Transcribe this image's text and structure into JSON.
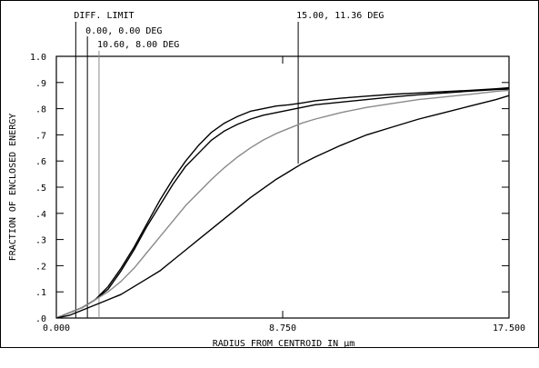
{
  "chart_data": {
    "type": "line",
    "title": "",
    "xlabel": "RADIUS FROM CENTROID IN µm",
    "ylabel": "FRACTION OF ENCLOSED ENERGY",
    "xlim": [
      0,
      17.5
    ],
    "ylim": [
      0,
      1.0
    ],
    "x_ticks": [
      0,
      8.75,
      17.5
    ],
    "x_tick_labels": [
      "0.000",
      "8.750",
      "17.500"
    ],
    "y_ticks": [
      0,
      0.1,
      0.2,
      0.3,
      0.4,
      0.5,
      0.6,
      0.7,
      0.8,
      0.9,
      1.0
    ],
    "y_tick_labels": [
      ".0",
      ".1",
      ".2",
      ".3",
      ".4",
      ".5",
      ".6",
      ".7",
      ".8",
      ".9",
      "1.0"
    ],
    "grid": false,
    "annotations": [
      {
        "text": "DIFF. LIMIT",
        "x": 0.75
      },
      {
        "text": "0.00, 0.00 DEG",
        "x": 1.2
      },
      {
        "text": "10.60, 8.00 DEG",
        "x": 1.65
      },
      {
        "text": "15.00, 11.36 DEG",
        "x": 9.35
      }
    ],
    "series": [
      {
        "color": "#000000",
        "x": [
          0,
          0.5,
          1,
          1.5,
          2,
          2.5,
          3,
          3.5,
          4,
          4.5,
          5,
          5.5,
          6,
          6.5,
          7,
          7.5,
          8,
          8.5,
          9,
          9.5,
          10,
          11,
          12,
          13,
          14,
          15,
          16,
          17,
          17.5
        ],
        "y": [
          0,
          0.02,
          0.04,
          0.07,
          0.12,
          0.19,
          0.27,
          0.36,
          0.45,
          0.53,
          0.6,
          0.66,
          0.71,
          0.745,
          0.77,
          0.79,
          0.8,
          0.81,
          0.815,
          0.822,
          0.83,
          0.84,
          0.848,
          0.855,
          0.86,
          0.865,
          0.87,
          0.876,
          0.88
        ]
      },
      {
        "color": "#000000",
        "x": [
          0,
          0.5,
          1,
          1.5,
          2,
          2.5,
          3,
          3.5,
          4,
          4.5,
          5,
          5.5,
          6,
          6.5,
          7,
          7.5,
          8,
          8.5,
          9,
          9.5,
          10,
          11,
          12,
          13,
          14,
          15,
          16,
          17,
          17.5
        ],
        "y": [
          0,
          0.02,
          0.04,
          0.07,
          0.11,
          0.18,
          0.26,
          0.35,
          0.43,
          0.51,
          0.58,
          0.63,
          0.68,
          0.715,
          0.74,
          0.76,
          0.775,
          0.785,
          0.795,
          0.805,
          0.815,
          0.825,
          0.835,
          0.845,
          0.853,
          0.86,
          0.867,
          0.873,
          0.875
        ]
      },
      {
        "color": "#8a8a8a",
        "x": [
          0,
          0.5,
          1,
          1.5,
          2,
          2.5,
          3,
          3.5,
          4,
          4.5,
          5,
          5.5,
          6,
          6.5,
          7,
          7.5,
          8,
          8.5,
          9,
          9.5,
          10,
          11,
          12,
          13,
          14,
          15,
          16,
          17,
          17.5
        ],
        "y": [
          0,
          0.02,
          0.04,
          0.07,
          0.1,
          0.14,
          0.19,
          0.25,
          0.31,
          0.37,
          0.43,
          0.48,
          0.53,
          0.575,
          0.615,
          0.65,
          0.68,
          0.705,
          0.725,
          0.745,
          0.76,
          0.785,
          0.805,
          0.82,
          0.835,
          0.845,
          0.855,
          0.866,
          0.87
        ]
      },
      {
        "color": "#000000",
        "x": [
          0,
          0.5,
          1,
          1.5,
          2,
          2.5,
          3,
          3.5,
          4,
          4.5,
          5,
          5.5,
          6,
          6.5,
          7,
          7.5,
          8,
          8.5,
          9,
          9.5,
          10,
          11,
          12,
          13,
          14,
          15,
          16,
          17,
          17.5
        ],
        "y": [
          0,
          0.01,
          0.03,
          0.05,
          0.07,
          0.09,
          0.12,
          0.15,
          0.18,
          0.22,
          0.26,
          0.3,
          0.34,
          0.38,
          0.42,
          0.46,
          0.495,
          0.53,
          0.56,
          0.59,
          0.615,
          0.66,
          0.7,
          0.73,
          0.76,
          0.785,
          0.81,
          0.835,
          0.85
        ]
      }
    ]
  }
}
